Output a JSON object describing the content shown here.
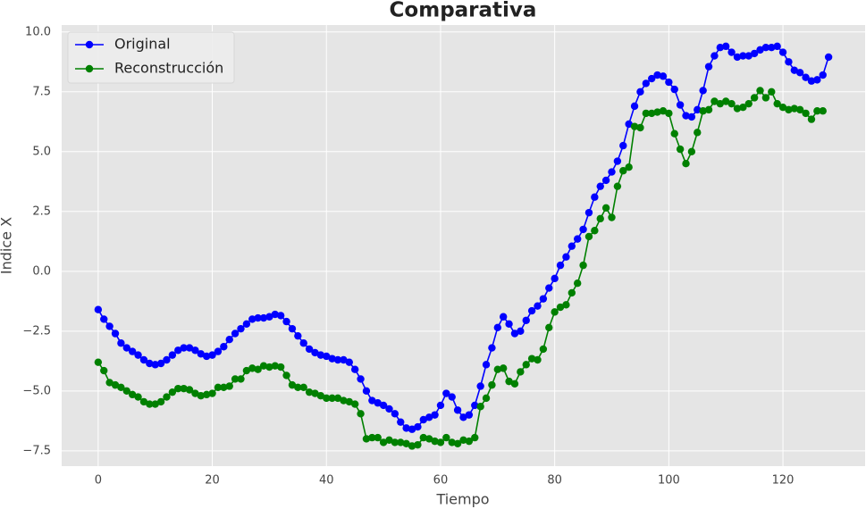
{
  "chart_data": {
    "type": "line",
    "title": "Comparativa",
    "x_label": "Tiempo",
    "y_label": "Indice X",
    "x": [
      0,
      1,
      2,
      3,
      4,
      5,
      6,
      7,
      8,
      9,
      10,
      11,
      12,
      13,
      14,
      15,
      16,
      17,
      18,
      19,
      20,
      21,
      22,
      23,
      24,
      25,
      26,
      27,
      28,
      29,
      30,
      31,
      32,
      33,
      34,
      35,
      36,
      37,
      38,
      39,
      40,
      41,
      42,
      43,
      44,
      45,
      46,
      47,
      48,
      49,
      50,
      51,
      52,
      53,
      54,
      55,
      56,
      57,
      58,
      59,
      60,
      61,
      62,
      63,
      64,
      65,
      66,
      67,
      68,
      69,
      70,
      71,
      72,
      73,
      74,
      75,
      76,
      77,
      78,
      79,
      80,
      81,
      82,
      83,
      84,
      85,
      86,
      87,
      88,
      89,
      90,
      91,
      92,
      93,
      94,
      95,
      96,
      97,
      98,
      99,
      100,
      101,
      102,
      103,
      104,
      105,
      106,
      107,
      108,
      109,
      110,
      111,
      112,
      113,
      114,
      115,
      116,
      117,
      118,
      119,
      120,
      121,
      122,
      123,
      124,
      125,
      126,
      127,
      128
    ],
    "series": [
      {
        "name": "Original",
        "color": "#0000ff",
        "values": [
          -1.6,
          -2.0,
          -2.3,
          -2.6,
          -3.0,
          -3.2,
          -3.35,
          -3.5,
          -3.7,
          -3.85,
          -3.9,
          -3.85,
          -3.7,
          -3.5,
          -3.3,
          -3.2,
          -3.2,
          -3.3,
          -3.45,
          -3.55,
          -3.5,
          -3.35,
          -3.15,
          -2.85,
          -2.6,
          -2.4,
          -2.2,
          -2.0,
          -1.95,
          -1.95,
          -1.9,
          -1.8,
          -1.85,
          -2.1,
          -2.4,
          -2.7,
          -3.0,
          -3.25,
          -3.4,
          -3.5,
          -3.55,
          -3.65,
          -3.7,
          -3.7,
          -3.8,
          -4.1,
          -4.5,
          -5.0,
          -5.4,
          -5.5,
          -5.6,
          -5.75,
          -5.95,
          -6.3,
          -6.55,
          -6.6,
          -6.5,
          -6.2,
          -6.1,
          -6.0,
          -5.6,
          -5.1,
          -5.25,
          -5.8,
          -6.1,
          -6.0,
          -5.6,
          -4.8,
          -3.9,
          -3.2,
          -2.35,
          -1.9,
          -2.2,
          -2.6,
          -2.5,
          -2.05,
          -1.65,
          -1.45,
          -1.15,
          -0.7,
          -0.3,
          0.25,
          0.6,
          1.05,
          1.35,
          1.75,
          2.45,
          3.1,
          3.55,
          3.8,
          4.15,
          4.6,
          5.25,
          6.15,
          6.9,
          7.5,
          7.85,
          8.05,
          8.2,
          8.15,
          7.9,
          7.6,
          6.95,
          6.5,
          6.45,
          6.75,
          7.55,
          8.55,
          9.0,
          9.35,
          9.4,
          9.15,
          8.95,
          9.0,
          9.0,
          9.1,
          9.25,
          9.35,
          9.35,
          9.4,
          9.15,
          8.75,
          8.4,
          8.3,
          8.1,
          7.95,
          8.0,
          8.2,
          8.95
        ]
      },
      {
        "name": "Reconstrucción",
        "color": "#008000",
        "values": [
          -3.8,
          -4.15,
          -4.65,
          -4.75,
          -4.85,
          -5.0,
          -5.15,
          -5.25,
          -5.45,
          -5.55,
          -5.55,
          -5.45,
          -5.25,
          -5.05,
          -4.9,
          -4.9,
          -4.95,
          -5.1,
          -5.2,
          -5.15,
          -5.1,
          -4.85,
          -4.85,
          -4.8,
          -4.5,
          -4.5,
          -4.15,
          -4.05,
          -4.1,
          -3.95,
          -4.0,
          -3.95,
          -4.0,
          -4.35,
          -4.75,
          -4.85,
          -4.85,
          -5.05,
          -5.1,
          -5.2,
          -5.3,
          -5.3,
          -5.3,
          -5.4,
          -5.45,
          -5.55,
          -5.95,
          -7.0,
          -6.95,
          -6.95,
          -7.15,
          -7.05,
          -7.15,
          -7.15,
          -7.2,
          -7.3,
          -7.25,
          -6.95,
          -7.0,
          -7.1,
          -7.15,
          -6.95,
          -7.15,
          -7.2,
          -7.05,
          -7.1,
          -6.95,
          -5.65,
          -5.3,
          -4.75,
          -4.1,
          -4.05,
          -4.6,
          -4.7,
          -4.2,
          -3.9,
          -3.65,
          -3.7,
          -3.25,
          -2.35,
          -1.7,
          -1.5,
          -1.4,
          -0.9,
          -0.5,
          0.25,
          1.45,
          1.7,
          2.2,
          2.65,
          2.25,
          3.55,
          4.2,
          4.35,
          6.05,
          6.0,
          6.6,
          6.6,
          6.65,
          6.7,
          6.6,
          5.75,
          5.1,
          4.5,
          5.0,
          5.8,
          6.7,
          6.75,
          7.1,
          7.0,
          7.1,
          7.0,
          6.8,
          6.85,
          7.0,
          7.25,
          7.55,
          7.25,
          7.5,
          7.0,
          6.85,
          6.75,
          6.8,
          6.75,
          6.6,
          6.35,
          6.7,
          6.7,
          null
        ]
      }
    ],
    "xlim": [
      -6.4,
      134.4
    ],
    "ylim": [
      -8.14,
      10.29
    ],
    "xticks": [
      0,
      20,
      40,
      60,
      80,
      100,
      120
    ],
    "yticks": [
      {
        "value": -7.5,
        "label": "−7.5"
      },
      {
        "value": -5.0,
        "label": "−5.0"
      },
      {
        "value": -2.5,
        "label": "−2.5"
      },
      {
        "value": 0,
        "label": "0.0"
      },
      2.5,
      {
        "value": 5,
        "label": "5.0"
      },
      7.5,
      {
        "value": 10,
        "label": "10.0"
      }
    ],
    "grid": true,
    "legend": "upper left"
  }
}
